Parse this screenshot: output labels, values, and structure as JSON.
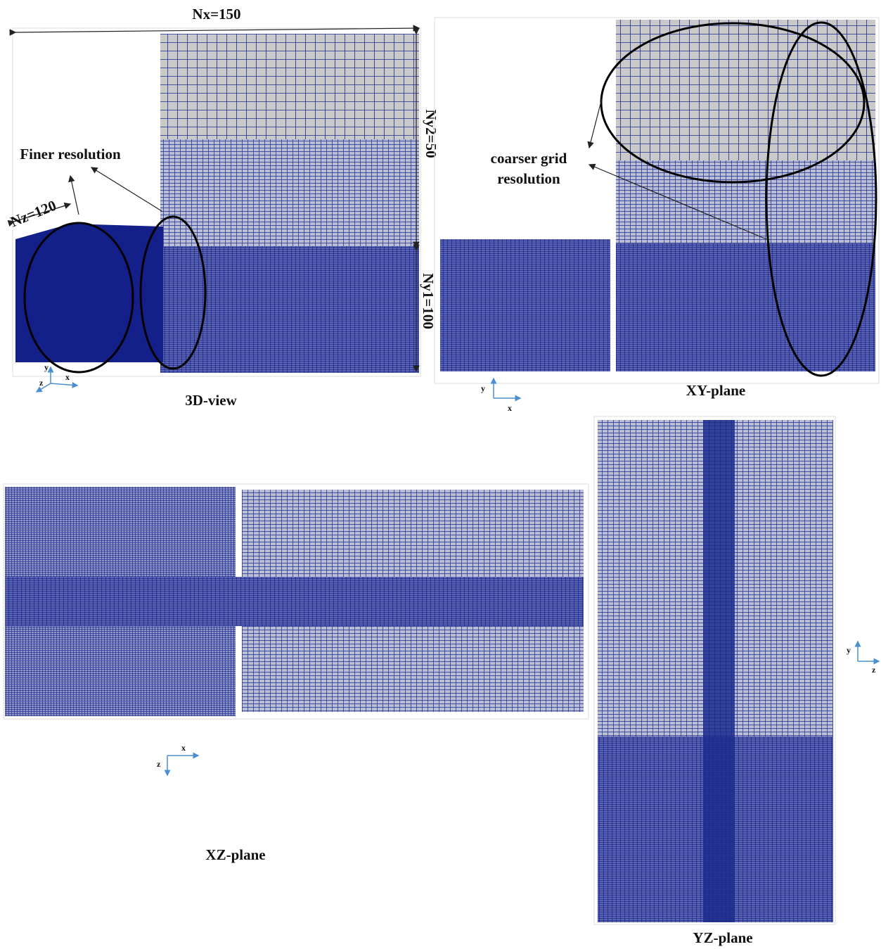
{
  "view_3d": {
    "caption": "3D-view",
    "labels": [
      "Nx=150",
      "Ny2=50",
      "Ny1=100",
      "Nz=120",
      "Finer resolution"
    ],
    "axes": [
      "y",
      "z",
      "x"
    ]
  },
  "xy_plane": {
    "caption": "XY-plane",
    "labels": [
      "coarser grid",
      "resolution"
    ],
    "axes": [
      "y",
      "x"
    ]
  },
  "xz_plane": {
    "caption": "XZ-plane",
    "axes": [
      "z",
      "x"
    ]
  },
  "yz_plane": {
    "caption": "YZ-plane",
    "axes": [
      "y",
      "z"
    ]
  }
}
